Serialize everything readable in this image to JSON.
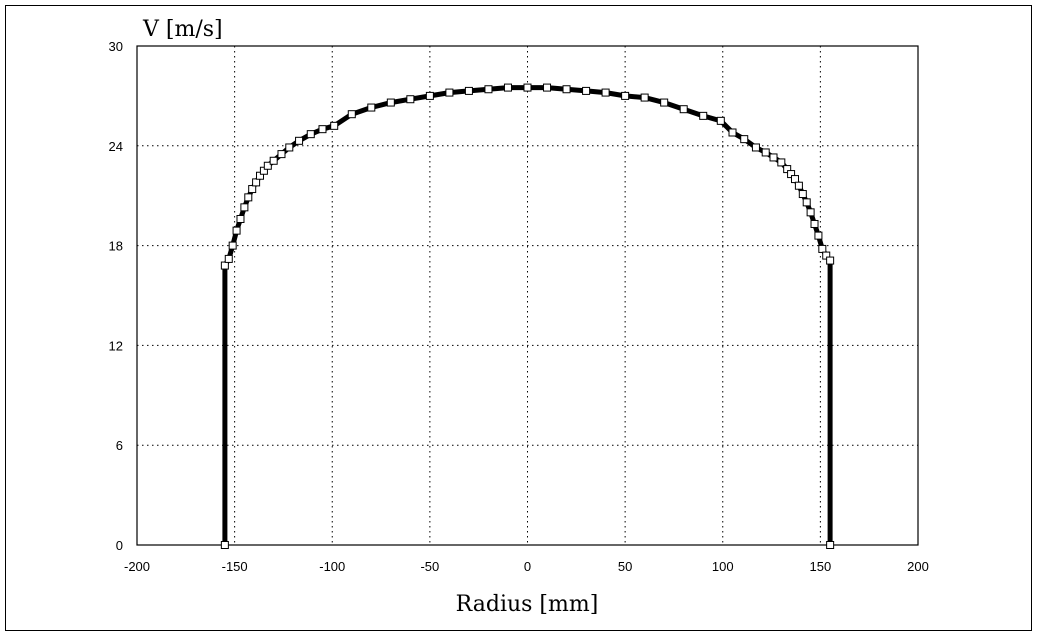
{
  "chart_data": {
    "type": "line",
    "title": "",
    "xlabel": "Radius [mm]",
    "ylabel": "V [m/s]",
    "xlim": [
      -200,
      200
    ],
    "ylim": [
      0,
      30
    ],
    "xticks": [
      -200,
      -150,
      -100,
      -50,
      0,
      50,
      100,
      150,
      200
    ],
    "yticks": [
      0,
      6,
      12,
      18,
      24,
      30
    ],
    "xtick_labels": [
      "-200",
      "-150",
      "-100",
      "-50",
      "0",
      "50",
      "100",
      "150",
      "200"
    ],
    "ytick_labels": [
      "0",
      "6",
      "12",
      "18",
      "24",
      "30"
    ],
    "grid": true,
    "legend": "none",
    "series": [
      {
        "x": [
          -155,
          -155,
          -153,
          -151,
          -149,
          -147,
          -145,
          -143,
          -141,
          -139,
          -137,
          -135,
          -133,
          -130,
          -126,
          -122,
          -117,
          -111,
          -105,
          -99,
          -90,
          -80,
          -70,
          -60,
          -50,
          -40,
          -30,
          -20,
          -10,
          0,
          10,
          20,
          30,
          40,
          50,
          60,
          70,
          80,
          90,
          99,
          105,
          111,
          117,
          122,
          126,
          130,
          133,
          135,
          137,
          139,
          141,
          143,
          145,
          147,
          149,
          151,
          153,
          155,
          155
        ],
        "y": [
          0.0,
          16.8,
          17.2,
          18.0,
          18.9,
          19.6,
          20.3,
          20.9,
          21.4,
          21.8,
          22.2,
          22.5,
          22.8,
          23.1,
          23.5,
          23.9,
          24.3,
          24.7,
          25.0,
          25.2,
          25.9,
          26.3,
          26.6,
          26.8,
          27.0,
          27.2,
          27.3,
          27.4,
          27.5,
          27.5,
          27.5,
          27.4,
          27.3,
          27.2,
          27.0,
          26.9,
          26.6,
          26.2,
          25.8,
          25.5,
          24.8,
          24.4,
          23.9,
          23.6,
          23.3,
          23.0,
          22.6,
          22.3,
          22.0,
          21.6,
          21.1,
          20.6,
          20.0,
          19.3,
          18.6,
          17.8,
          17.4,
          17.1,
          0.0
        ]
      }
    ]
  }
}
